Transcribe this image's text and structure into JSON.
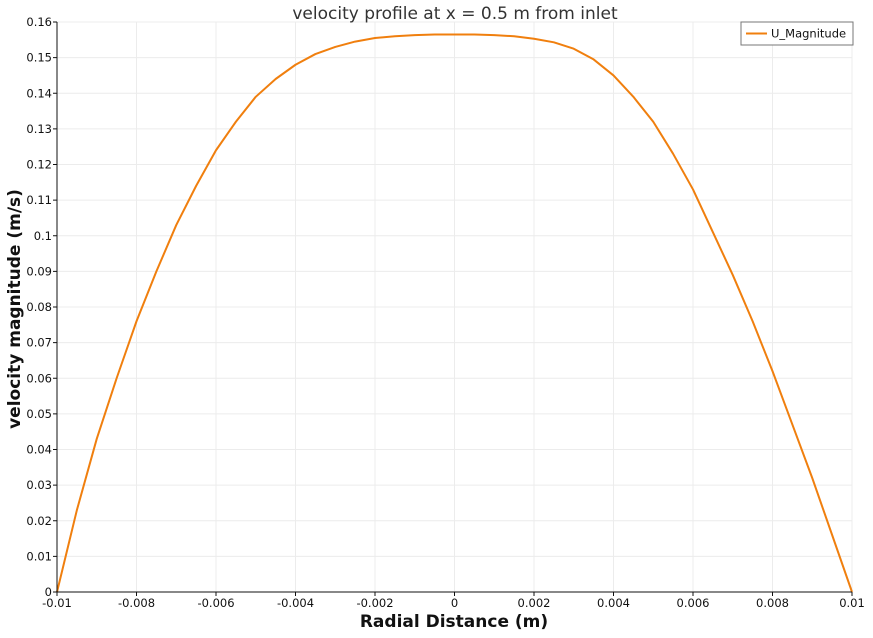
{
  "chart_data": {
    "type": "line",
    "title": "velocity profile at x = 0.5 m from inlet",
    "xlabel": "Radial Distance (m)",
    "ylabel": "velocity magnitude (m/s)",
    "xlim": [
      -0.01,
      0.01
    ],
    "ylim": [
      0,
      0.16
    ],
    "x_ticks": [
      -0.01,
      -0.008,
      -0.006,
      -0.004,
      -0.002,
      0,
      0.002,
      0.004,
      0.006,
      0.008,
      0.01
    ],
    "x_tick_labels": [
      "-0.01",
      "-0.008",
      "-0.006",
      "-0.004",
      "-0.002",
      "0",
      "0.002",
      "0.004",
      "0.006",
      "0.008",
      "0.01"
    ],
    "y_ticks": [
      0,
      0.01,
      0.02,
      0.03,
      0.04,
      0.05,
      0.06,
      0.07,
      0.08,
      0.09,
      0.1,
      0.11,
      0.12,
      0.13,
      0.14,
      0.15,
      0.16
    ],
    "y_tick_labels": [
      "0",
      "0.01",
      "0.02",
      "0.03",
      "0.04",
      "0.05",
      "0.06",
      "0.07",
      "0.08",
      "0.09",
      "0.1",
      "0.11",
      "0.12",
      "0.13",
      "0.14",
      "0.15",
      "0.16"
    ],
    "grid": true,
    "legend_position": "top-right",
    "series": [
      {
        "name": "U_Magnitude",
        "color": "#f07f0e",
        "x": [
          -0.01,
          -0.0095,
          -0.009,
          -0.0085,
          -0.008,
          -0.0075,
          -0.007,
          -0.0065,
          -0.006,
          -0.0055,
          -0.005,
          -0.0045,
          -0.004,
          -0.0035,
          -0.003,
          -0.0025,
          -0.002,
          -0.0015,
          -0.001,
          -0.0005,
          0,
          0.0005,
          0.001,
          0.0015,
          0.002,
          0.0025,
          0.003,
          0.0035,
          0.004,
          0.0045,
          0.005,
          0.0055,
          0.006,
          0.0065,
          0.007,
          0.0075,
          0.008,
          0.0085,
          0.009,
          0.0095,
          0.01
        ],
        "y": [
          0,
          0.023,
          0.043,
          0.06,
          0.076,
          0.09,
          0.103,
          0.114,
          0.124,
          0.132,
          0.139,
          0.144,
          0.148,
          0.151,
          0.153,
          0.1545,
          0.1555,
          0.156,
          0.1563,
          0.1565,
          0.1565,
          0.1565,
          0.1563,
          0.156,
          0.1553,
          0.1543,
          0.1525,
          0.1495,
          0.145,
          0.139,
          0.132,
          0.123,
          0.113,
          0.101,
          0.089,
          0.076,
          0.062,
          0.047,
          0.032,
          0.016,
          0
        ]
      }
    ]
  }
}
